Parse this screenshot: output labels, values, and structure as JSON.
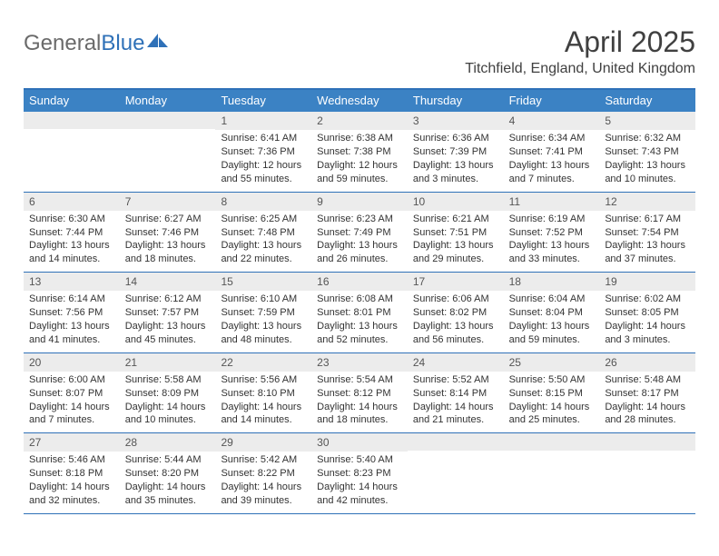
{
  "logo": {
    "text1": "General",
    "text2": "Blue"
  },
  "title": "April 2025",
  "location": "Titchfield, England, United Kingdom",
  "dow": [
    "Sunday",
    "Monday",
    "Tuesday",
    "Wednesday",
    "Thursday",
    "Friday",
    "Saturday"
  ],
  "colors": {
    "header_bar": "#3b82c4",
    "border": "#2f71b8",
    "day_num_bg": "#ececec",
    "text": "#333333",
    "logo_gray": "#6a6a6a",
    "logo_blue": "#2f71b8"
  },
  "weeks": [
    [
      {
        "n": "",
        "sunrise": "",
        "sunset": "",
        "daylight": ""
      },
      {
        "n": "",
        "sunrise": "",
        "sunset": "",
        "daylight": ""
      },
      {
        "n": "1",
        "sunrise": "Sunrise: 6:41 AM",
        "sunset": "Sunset: 7:36 PM",
        "daylight": "Daylight: 12 hours and 55 minutes."
      },
      {
        "n": "2",
        "sunrise": "Sunrise: 6:38 AM",
        "sunset": "Sunset: 7:38 PM",
        "daylight": "Daylight: 12 hours and 59 minutes."
      },
      {
        "n": "3",
        "sunrise": "Sunrise: 6:36 AM",
        "sunset": "Sunset: 7:39 PM",
        "daylight": "Daylight: 13 hours and 3 minutes."
      },
      {
        "n": "4",
        "sunrise": "Sunrise: 6:34 AM",
        "sunset": "Sunset: 7:41 PM",
        "daylight": "Daylight: 13 hours and 7 minutes."
      },
      {
        "n": "5",
        "sunrise": "Sunrise: 6:32 AM",
        "sunset": "Sunset: 7:43 PM",
        "daylight": "Daylight: 13 hours and 10 minutes."
      }
    ],
    [
      {
        "n": "6",
        "sunrise": "Sunrise: 6:30 AM",
        "sunset": "Sunset: 7:44 PM",
        "daylight": "Daylight: 13 hours and 14 minutes."
      },
      {
        "n": "7",
        "sunrise": "Sunrise: 6:27 AM",
        "sunset": "Sunset: 7:46 PM",
        "daylight": "Daylight: 13 hours and 18 minutes."
      },
      {
        "n": "8",
        "sunrise": "Sunrise: 6:25 AM",
        "sunset": "Sunset: 7:48 PM",
        "daylight": "Daylight: 13 hours and 22 minutes."
      },
      {
        "n": "9",
        "sunrise": "Sunrise: 6:23 AM",
        "sunset": "Sunset: 7:49 PM",
        "daylight": "Daylight: 13 hours and 26 minutes."
      },
      {
        "n": "10",
        "sunrise": "Sunrise: 6:21 AM",
        "sunset": "Sunset: 7:51 PM",
        "daylight": "Daylight: 13 hours and 29 minutes."
      },
      {
        "n": "11",
        "sunrise": "Sunrise: 6:19 AM",
        "sunset": "Sunset: 7:52 PM",
        "daylight": "Daylight: 13 hours and 33 minutes."
      },
      {
        "n": "12",
        "sunrise": "Sunrise: 6:17 AM",
        "sunset": "Sunset: 7:54 PM",
        "daylight": "Daylight: 13 hours and 37 minutes."
      }
    ],
    [
      {
        "n": "13",
        "sunrise": "Sunrise: 6:14 AM",
        "sunset": "Sunset: 7:56 PM",
        "daylight": "Daylight: 13 hours and 41 minutes."
      },
      {
        "n": "14",
        "sunrise": "Sunrise: 6:12 AM",
        "sunset": "Sunset: 7:57 PM",
        "daylight": "Daylight: 13 hours and 45 minutes."
      },
      {
        "n": "15",
        "sunrise": "Sunrise: 6:10 AM",
        "sunset": "Sunset: 7:59 PM",
        "daylight": "Daylight: 13 hours and 48 minutes."
      },
      {
        "n": "16",
        "sunrise": "Sunrise: 6:08 AM",
        "sunset": "Sunset: 8:01 PM",
        "daylight": "Daylight: 13 hours and 52 minutes."
      },
      {
        "n": "17",
        "sunrise": "Sunrise: 6:06 AM",
        "sunset": "Sunset: 8:02 PM",
        "daylight": "Daylight: 13 hours and 56 minutes."
      },
      {
        "n": "18",
        "sunrise": "Sunrise: 6:04 AM",
        "sunset": "Sunset: 8:04 PM",
        "daylight": "Daylight: 13 hours and 59 minutes."
      },
      {
        "n": "19",
        "sunrise": "Sunrise: 6:02 AM",
        "sunset": "Sunset: 8:05 PM",
        "daylight": "Daylight: 14 hours and 3 minutes."
      }
    ],
    [
      {
        "n": "20",
        "sunrise": "Sunrise: 6:00 AM",
        "sunset": "Sunset: 8:07 PM",
        "daylight": "Daylight: 14 hours and 7 minutes."
      },
      {
        "n": "21",
        "sunrise": "Sunrise: 5:58 AM",
        "sunset": "Sunset: 8:09 PM",
        "daylight": "Daylight: 14 hours and 10 minutes."
      },
      {
        "n": "22",
        "sunrise": "Sunrise: 5:56 AM",
        "sunset": "Sunset: 8:10 PM",
        "daylight": "Daylight: 14 hours and 14 minutes."
      },
      {
        "n": "23",
        "sunrise": "Sunrise: 5:54 AM",
        "sunset": "Sunset: 8:12 PM",
        "daylight": "Daylight: 14 hours and 18 minutes."
      },
      {
        "n": "24",
        "sunrise": "Sunrise: 5:52 AM",
        "sunset": "Sunset: 8:14 PM",
        "daylight": "Daylight: 14 hours and 21 minutes."
      },
      {
        "n": "25",
        "sunrise": "Sunrise: 5:50 AM",
        "sunset": "Sunset: 8:15 PM",
        "daylight": "Daylight: 14 hours and 25 minutes."
      },
      {
        "n": "26",
        "sunrise": "Sunrise: 5:48 AM",
        "sunset": "Sunset: 8:17 PM",
        "daylight": "Daylight: 14 hours and 28 minutes."
      }
    ],
    [
      {
        "n": "27",
        "sunrise": "Sunrise: 5:46 AM",
        "sunset": "Sunset: 8:18 PM",
        "daylight": "Daylight: 14 hours and 32 minutes."
      },
      {
        "n": "28",
        "sunrise": "Sunrise: 5:44 AM",
        "sunset": "Sunset: 8:20 PM",
        "daylight": "Daylight: 14 hours and 35 minutes."
      },
      {
        "n": "29",
        "sunrise": "Sunrise: 5:42 AM",
        "sunset": "Sunset: 8:22 PM",
        "daylight": "Daylight: 14 hours and 39 minutes."
      },
      {
        "n": "30",
        "sunrise": "Sunrise: 5:40 AM",
        "sunset": "Sunset: 8:23 PM",
        "daylight": "Daylight: 14 hours and 42 minutes."
      },
      {
        "n": "",
        "sunrise": "",
        "sunset": "",
        "daylight": ""
      },
      {
        "n": "",
        "sunrise": "",
        "sunset": "",
        "daylight": ""
      },
      {
        "n": "",
        "sunrise": "",
        "sunset": "",
        "daylight": ""
      }
    ]
  ]
}
